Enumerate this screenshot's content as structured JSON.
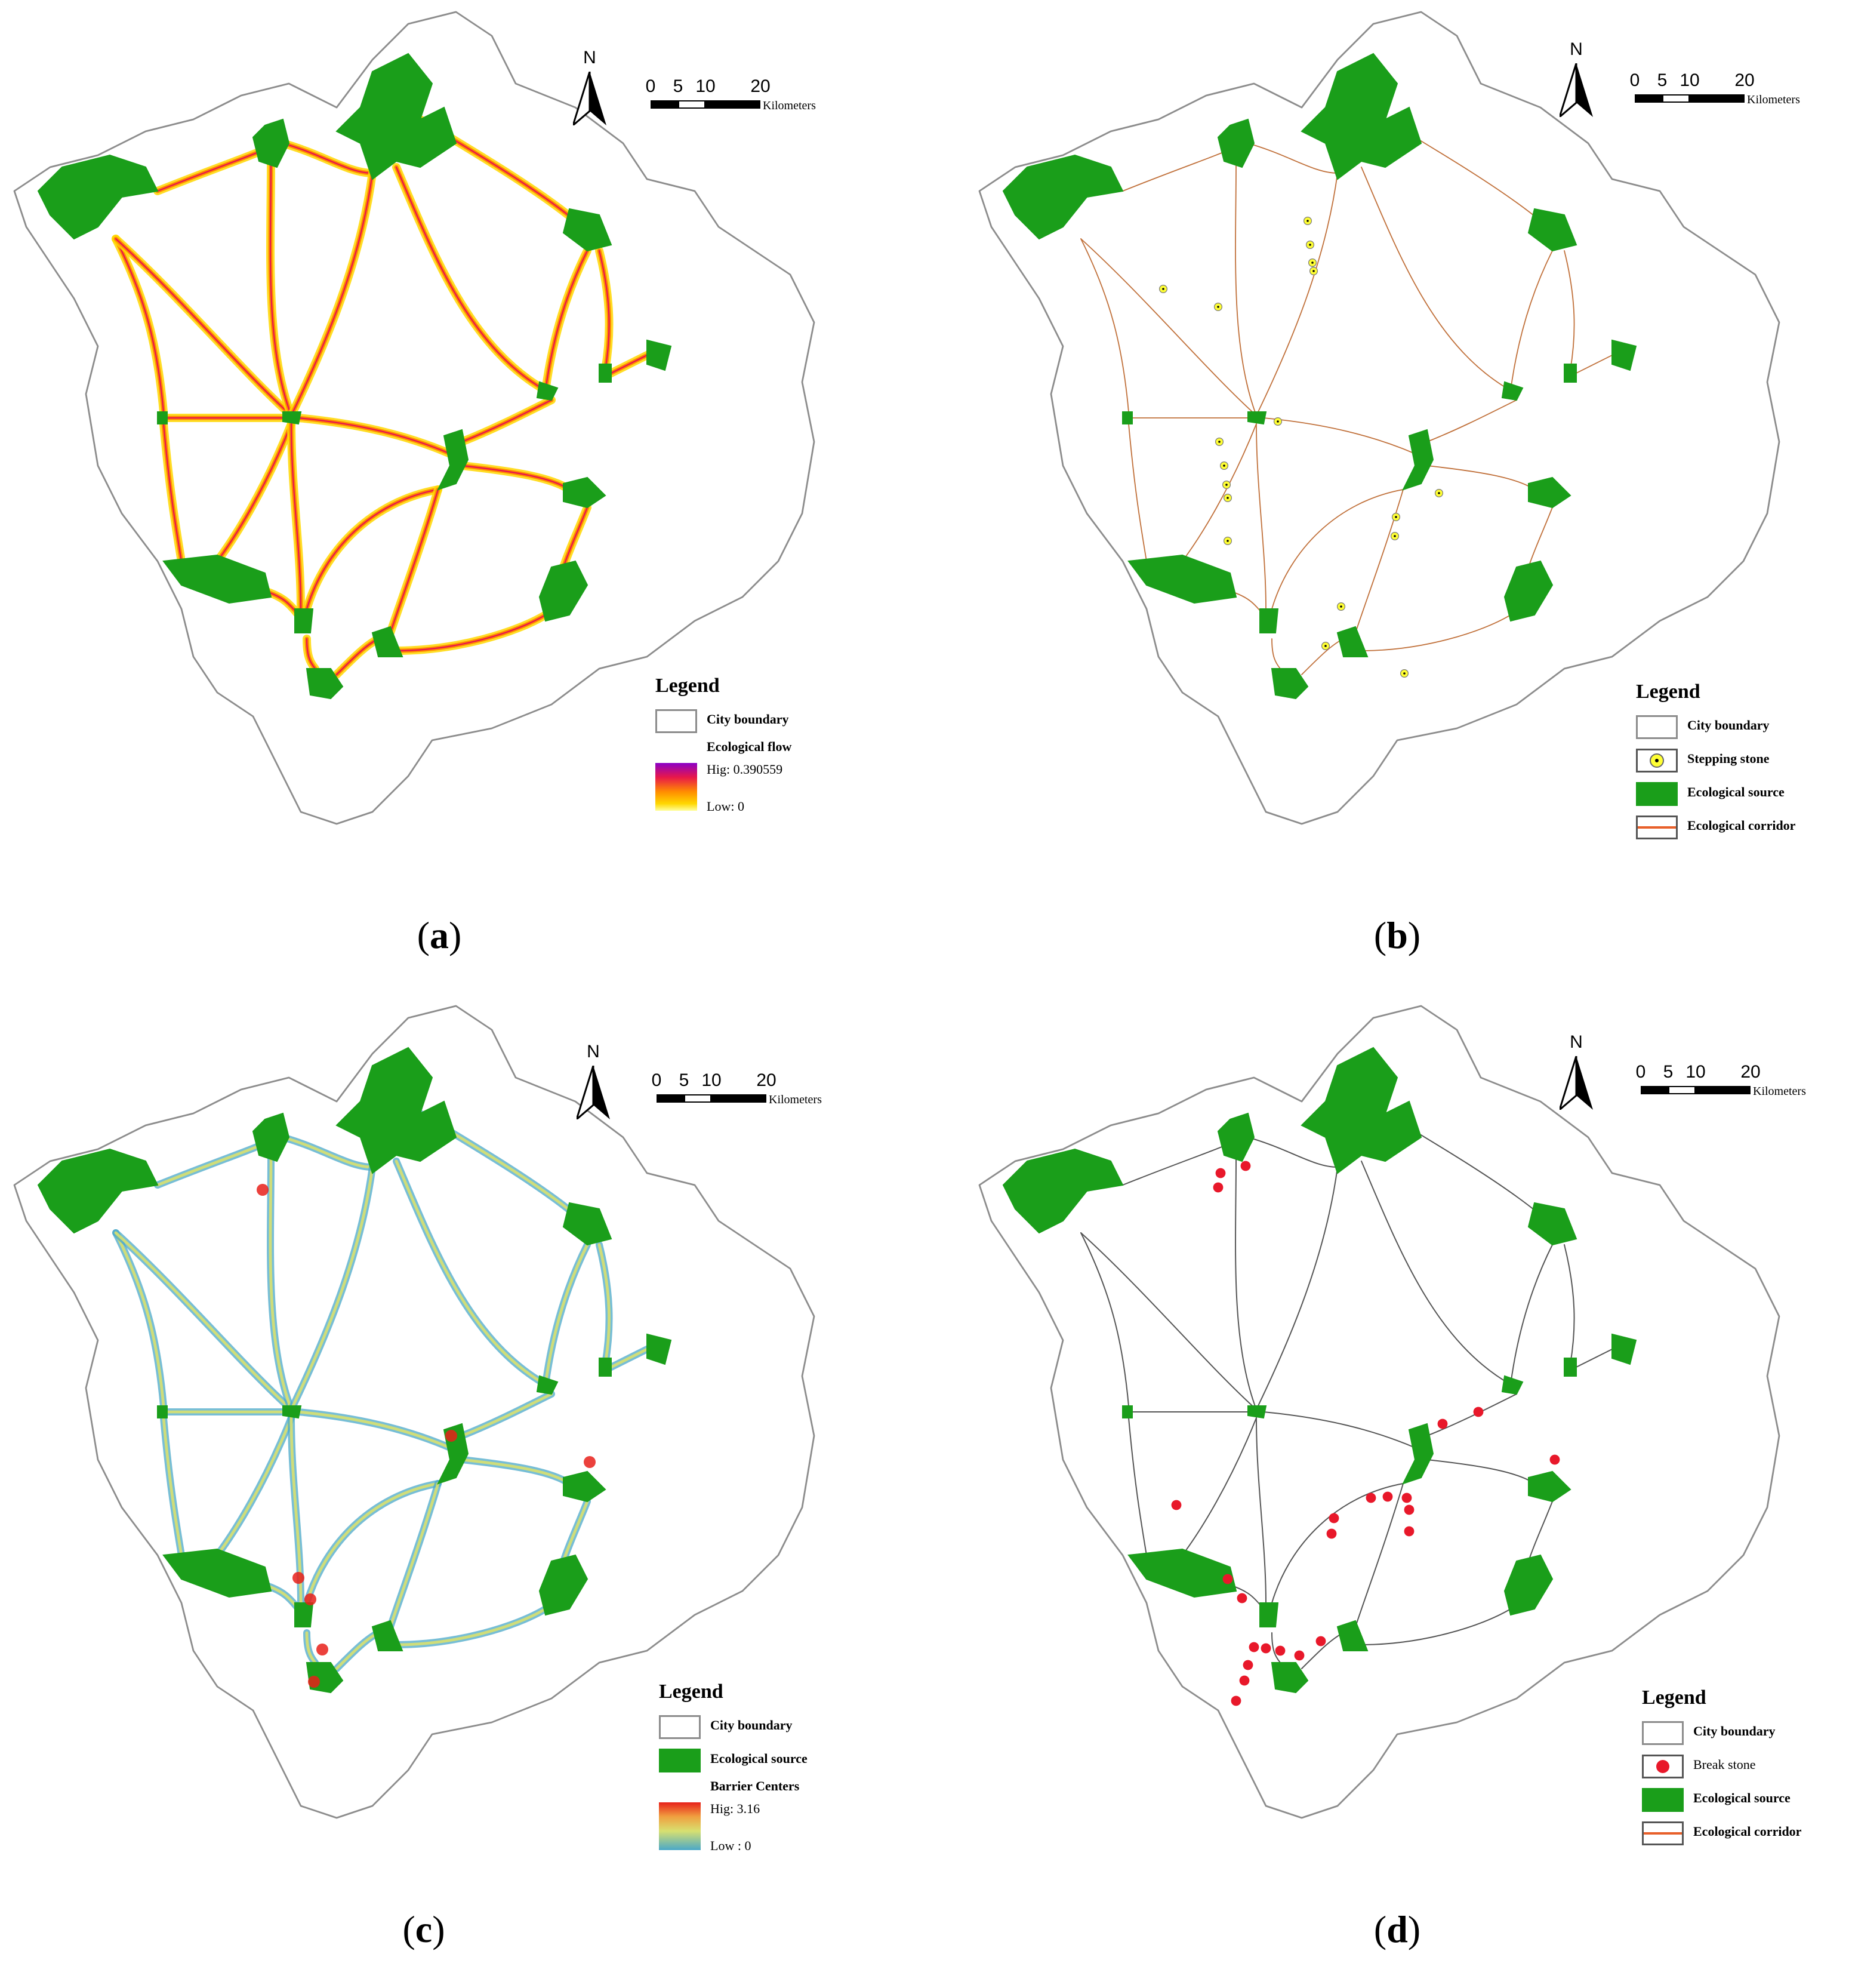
{
  "north_letter": "N",
  "scale": {
    "ticks": [
      "0",
      "5",
      "10",
      "20"
    ],
    "unit": "Kilometers"
  },
  "colors": {
    "boundary": "#8c8c8c",
    "source": "#1a9e1a",
    "flow_low": "#ffd700",
    "flow_mid": "#ff8c00",
    "flow_high": "#e8174a",
    "corridor_b": "#c0703a",
    "corridor_d": "#555555",
    "stepping_stone": "#ffff33",
    "break_stone": "#e8182a",
    "barrier_low": "#4aa8c8",
    "barrier_mid": "#d8e070",
    "barrier_high": "#e8201a"
  },
  "panels": [
    {
      "id": "a",
      "caption_letter": "a",
      "legend": {
        "title": "Legend",
        "items": [
          {
            "icon": "city-boundary-icon",
            "label": "City boundary"
          }
        ],
        "ramp": {
          "title": "Ecological flow",
          "high": "Hig: 0.390559",
          "low": "Low: 0"
        }
      }
    },
    {
      "id": "b",
      "caption_letter": "b",
      "legend": {
        "title": "Legend",
        "items": [
          {
            "icon": "city-boundary-icon",
            "label": "City boundary"
          },
          {
            "icon": "stepping-stone-icon",
            "label": "Stepping stone"
          },
          {
            "icon": "ecological-source-icon",
            "label": "Ecological source"
          },
          {
            "icon": "ecological-corridor-icon",
            "label": "Ecological corridor"
          }
        ]
      }
    },
    {
      "id": "c",
      "caption_letter": "c",
      "legend": {
        "title": "Legend",
        "items": [
          {
            "icon": "city-boundary-icon",
            "label": "City boundary"
          },
          {
            "icon": "ecological-source-icon",
            "label": "Ecological source"
          }
        ],
        "ramp": {
          "title": "Barrier Centers",
          "high": "Hig: 3.16",
          "low": "Low : 0"
        }
      }
    },
    {
      "id": "d",
      "caption_letter": "d",
      "legend": {
        "title": "Legend",
        "items": [
          {
            "icon": "city-boundary-icon",
            "label": "City boundary"
          },
          {
            "icon": "break-stone-icon",
            "label": "Break stone"
          },
          {
            "icon": "ecological-source-icon",
            "label": "Ecological source"
          },
          {
            "icon": "ecological-corridor-icon",
            "label": "Ecological corridor"
          }
        ]
      }
    }
  ]
}
